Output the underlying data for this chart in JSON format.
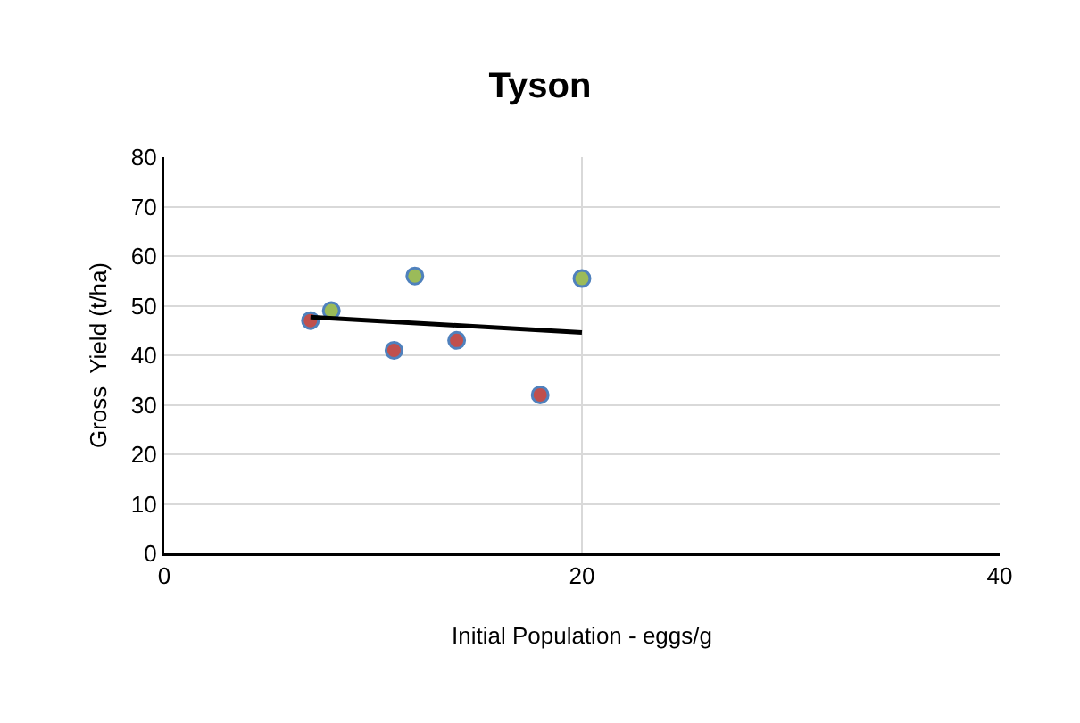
{
  "chart_data": {
    "type": "scatter",
    "title": "Tyson",
    "xlabel": "Initial Population - eggs/g",
    "ylabel": "Gross  Yield (t/ha)",
    "xlim": [
      0,
      40
    ],
    "xticks": [
      0,
      20,
      40
    ],
    "ylim": [
      0,
      80
    ],
    "yticks": [
      0,
      10,
      20,
      30,
      40,
      50,
      60,
      70,
      80
    ],
    "grid": true,
    "marker": "circle",
    "series": [
      {
        "color": "#c0504d",
        "x": [
          7,
          11,
          14,
          18
        ],
        "values": [
          47,
          41,
          43,
          32
        ]
      },
      {
        "color": "#9bbb59",
        "x": [
          8,
          12,
          20
        ],
        "values": [
          49,
          56,
          55.5
        ]
      },
      {
        "type": "line",
        "color": "#000000",
        "x": [
          7,
          20
        ],
        "values": [
          47.7,
          44.6
        ],
        "marker": "none",
        "line_style": "solid"
      }
    ]
  }
}
